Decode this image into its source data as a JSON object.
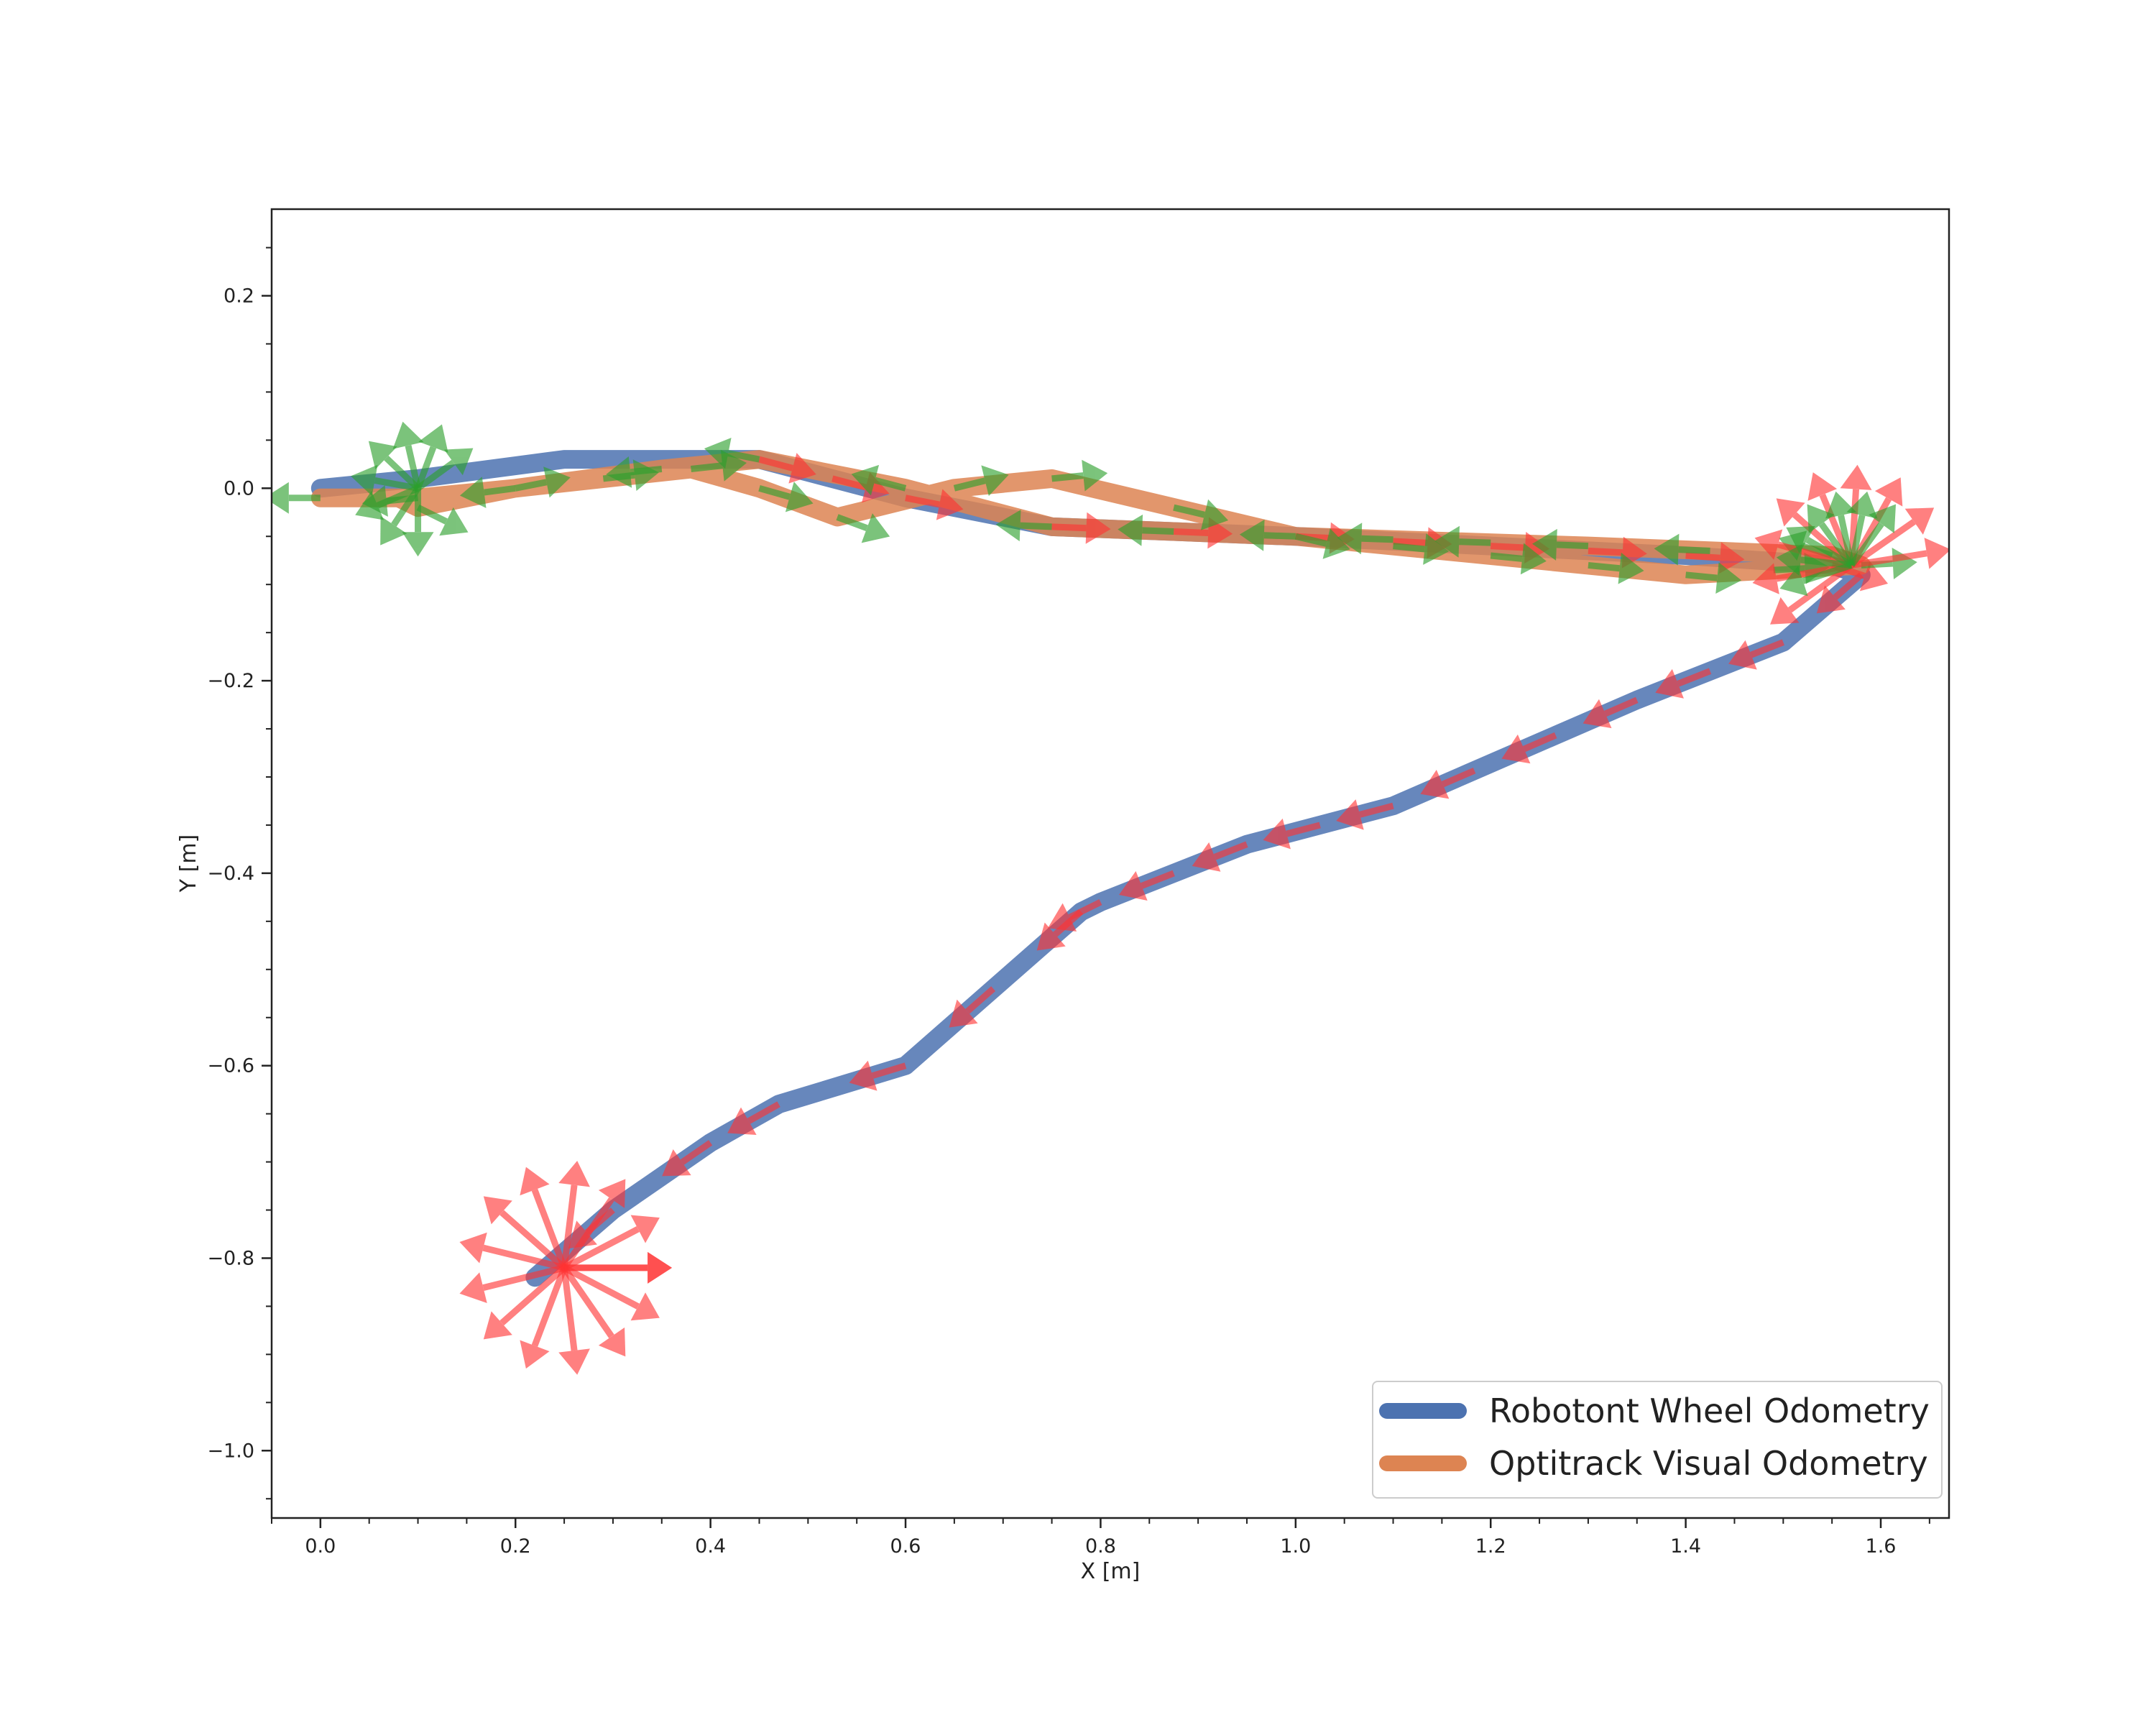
{
  "chart_data": {
    "type": "line",
    "title": "",
    "xlabel": "X [m]",
    "ylabel": "Y [m]",
    "xlim": [
      -0.05,
      1.67
    ],
    "ylim": [
      -1.07,
      0.29
    ],
    "grid": false,
    "legend_position": "lower-right",
    "xticks": [
      0.0,
      0.2,
      0.4,
      0.6,
      0.8,
      1.0,
      1.2,
      1.4,
      1.6
    ],
    "xtick_labels": [
      "0.0",
      "0.2",
      "0.4",
      "0.6",
      "0.8",
      "1.0",
      "1.2",
      "1.4",
      "1.6"
    ],
    "yticks": [
      0.2,
      0.0,
      -0.2,
      -0.4,
      -0.6,
      -0.8,
      -1.0
    ],
    "ytick_labels": [
      "0.2",
      "0.0",
      "−0.2",
      "−0.4",
      "−0.6",
      "−0.8",
      "−1.0"
    ],
    "series": [
      {
        "name": "Robotont Wheel Odometry",
        "color": "#4c72b0",
        "x": [
          0.0,
          0.1,
          0.25,
          0.4,
          0.45,
          0.6,
          0.75,
          1.0,
          1.2,
          1.4,
          1.55,
          1.58,
          1.5,
          1.35,
          1.1,
          0.95,
          0.8,
          0.78,
          0.6,
          0.47,
          0.4,
          0.3,
          0.22
        ],
        "y": [
          0.0,
          0.01,
          0.03,
          0.03,
          0.03,
          -0.01,
          -0.04,
          -0.05,
          -0.06,
          -0.07,
          -0.08,
          -0.09,
          -0.16,
          -0.22,
          -0.33,
          -0.37,
          -0.43,
          -0.44,
          -0.6,
          -0.64,
          -0.68,
          -0.75,
          -0.82
        ]
      },
      {
        "name": "Optitrack Visual Odometry",
        "color": "#dd8452",
        "x": [
          0.0,
          0.1,
          0.2,
          0.35,
          0.45,
          0.6,
          0.75,
          1.0,
          1.3,
          1.55,
          1.58,
          1.4,
          1.0,
          0.75,
          0.65,
          0.53,
          0.45,
          0.38,
          0.2,
          0.1,
          0.08
        ],
        "y": [
          -0.01,
          -0.01,
          0.0,
          0.02,
          0.03,
          0.0,
          -0.04,
          -0.05,
          -0.06,
          -0.07,
          -0.08,
          -0.09,
          -0.05,
          0.01,
          0.0,
          -0.03,
          0.0,
          0.02,
          0.0,
          -0.02,
          -0.01
        ]
      }
    ]
  },
  "pose_arrows": {
    "x_axis_color": "#ff3333",
    "y_axis_color": "#2ca02c"
  }
}
